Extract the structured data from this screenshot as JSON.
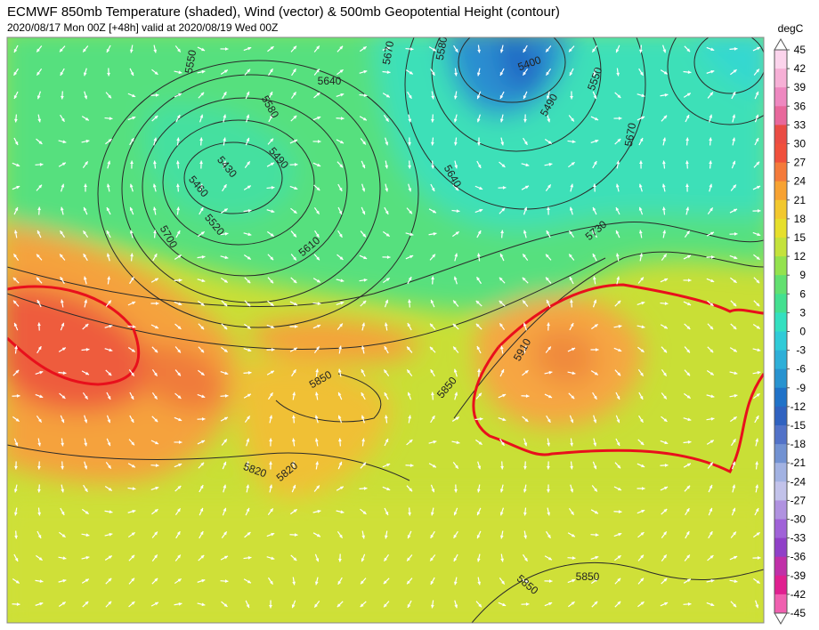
{
  "header": {
    "title": "ECMWF 850mb Temperature (shaded), Wind (vector) & 500mb Geopotential Height (contour)",
    "subtitle": "2020/08/17 Mon 00Z [+48h] valid at 2020/08/19 Wed 00Z"
  },
  "colorbar": {
    "unit": "degC",
    "labels": [
      45,
      42,
      39,
      36,
      33,
      30,
      27,
      24,
      21,
      18,
      15,
      12,
      9,
      6,
      3,
      0,
      -3,
      -6,
      -9,
      -12,
      -15,
      -18,
      -21,
      -24,
      -27,
      -30,
      -33,
      -36,
      -39,
      -42,
      -45
    ],
    "colors": [
      "#fbd4ec",
      "#f6b0d6",
      "#ee88c0",
      "#e8689c",
      "#ea4c44",
      "#f0503c",
      "#f47a3a",
      "#f7a232",
      "#f2c82e",
      "#e6df2c",
      "#c4e23c",
      "#94e24e",
      "#62e070",
      "#44e090",
      "#34e0c0",
      "#30cbd8",
      "#2eafd8",
      "#2893d0",
      "#2072c8",
      "#3062c0",
      "#5272c8",
      "#7292d2",
      "#a2b2e2",
      "#c2c2ea",
      "#b092e0",
      "#a062d8",
      "#9040c8",
      "#c030a8",
      "#e02090",
      "#f060b0"
    ]
  },
  "map": {
    "contour_labels": [
      "5550",
      "5430",
      "5490",
      "5460",
      "5520",
      "5700",
      "5580",
      "5640",
      "5610",
      "5400",
      "5550",
      "5490",
      "5670",
      "5730",
      "5850",
      "5850",
      "5910",
      "5820",
      "5820",
      "5850",
      "5850",
      "5640",
      "5670",
      "5580"
    ]
  }
}
